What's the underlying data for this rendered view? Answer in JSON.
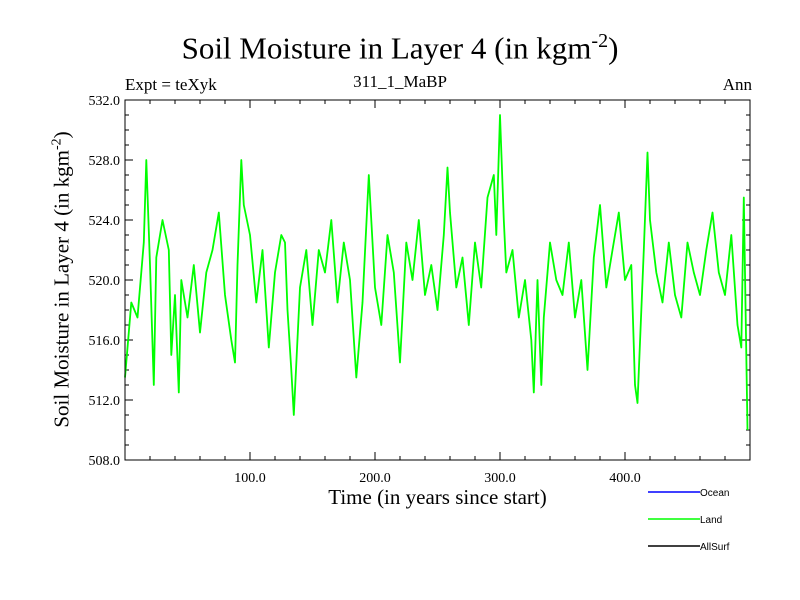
{
  "chart_data": {
    "type": "line",
    "title": "Soil Moisture in Layer 4 (in kgm",
    "title_sup": "-2",
    "title_tail": ")",
    "subtitle_left": "Expt = teXyk",
    "subtitle_center": "311_1_MaBP",
    "subtitle_right": "Ann",
    "xlabel": "Time (in years since start)",
    "ylabel": "Soil Moisture in Layer 4 (in kgm",
    "ylabel_sup": "-2",
    "ylabel_tail": ")",
    "xlim": [
      0,
      500
    ],
    "ylim": [
      508,
      532
    ],
    "x_ticks": [
      100,
      200,
      300,
      400
    ],
    "x_tick_labels": [
      "100.0",
      "200.0",
      "300.0",
      "400.0"
    ],
    "y_ticks": [
      508,
      512,
      516,
      520,
      524,
      528,
      532
    ],
    "y_tick_labels": [
      "508.0",
      "512.0",
      "516.0",
      "520.0",
      "524.0",
      "528.0",
      "532.0"
    ],
    "legend_position": "bottom-right",
    "series": [
      {
        "name": "Ocean",
        "color": "#0000ff",
        "x": [],
        "values": []
      },
      {
        "name": "Land",
        "color": "#00ff00",
        "x": [
          0,
          5,
          10,
          15,
          17,
          20,
          23,
          25,
          30,
          35,
          37,
          40,
          43,
          45,
          50,
          55,
          60,
          65,
          70,
          75,
          80,
          85,
          88,
          90,
          93,
          95,
          100,
          105,
          110,
          115,
          120,
          125,
          128,
          130,
          133,
          135,
          140,
          145,
          150,
          155,
          160,
          165,
          170,
          175,
          180,
          185,
          190,
          195,
          200,
          205,
          210,
          215,
          220,
          225,
          230,
          235,
          240,
          245,
          250,
          255,
          258,
          260,
          265,
          270,
          275,
          280,
          285,
          290,
          295,
          297,
          300,
          303,
          305,
          310,
          315,
          320,
          325,
          327,
          330,
          333,
          335,
          340,
          345,
          350,
          355,
          360,
          365,
          370,
          375,
          380,
          385,
          390,
          395,
          400,
          405,
          408,
          410,
          415,
          418,
          420,
          425,
          430,
          435,
          440,
          445,
          450,
          455,
          460,
          465,
          470,
          475,
          480,
          485,
          490,
          493,
          495,
          497,
          498
        ],
        "values": [
          513.5,
          518.5,
          517.5,
          522.5,
          528.0,
          521.0,
          513.0,
          521.5,
          524.0,
          522.0,
          515.0,
          519.0,
          512.5,
          520.0,
          517.5,
          521.0,
          516.5,
          520.5,
          522.0,
          524.5,
          519.0,
          516.0,
          514.5,
          521.0,
          528.0,
          525.0,
          523.0,
          518.5,
          522.0,
          515.5,
          520.5,
          523.0,
          522.5,
          518.0,
          514.0,
          511.0,
          519.5,
          522.0,
          517.0,
          522.0,
          520.5,
          524.0,
          518.5,
          522.5,
          520.0,
          513.5,
          518.5,
          527.0,
          519.5,
          517.0,
          523.0,
          520.5,
          514.5,
          522.5,
          520.0,
          524.0,
          519.0,
          521.0,
          518.0,
          523.0,
          527.5,
          524.5,
          519.5,
          521.5,
          517.0,
          522.5,
          519.5,
          525.5,
          527.0,
          523.0,
          531.0,
          524.0,
          520.5,
          522.0,
          517.5,
          520.0,
          516.0,
          512.5,
          520.0,
          513.0,
          517.5,
          522.5,
          520.0,
          519.0,
          522.5,
          517.5,
          520.0,
          514.0,
          521.5,
          525.0,
          519.5,
          522.0,
          524.5,
          520.0,
          521.0,
          513.0,
          511.8,
          522.0,
          528.5,
          524.0,
          520.5,
          518.5,
          522.5,
          519.0,
          517.5,
          522.5,
          520.5,
          519.0,
          522.0,
          524.5,
          520.5,
          519.0,
          523.0,
          517.0,
          515.5,
          525.5,
          515.0,
          510.0
        ]
      },
      {
        "name": "AllSurf",
        "color": "#000000",
        "x": [],
        "values": []
      }
    ]
  }
}
